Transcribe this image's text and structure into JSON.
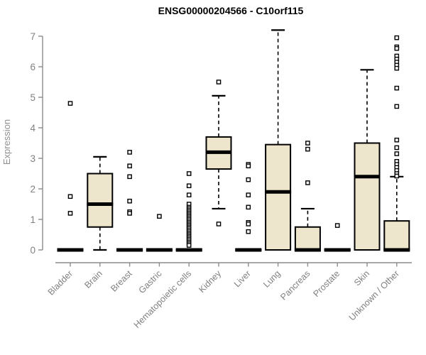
{
  "title": "ENSG00000204566 - C10orf115",
  "chart_data": {
    "type": "boxplot",
    "title": "ENSG00000204566 - C10orf115",
    "xlabel": "",
    "ylabel": "Expression",
    "ylim": [
      0,
      7
    ],
    "yticks": [
      0,
      1,
      2,
      3,
      4,
      5,
      6,
      7
    ],
    "grid": false,
    "legend": false,
    "categories": [
      "Bladder",
      "Brain",
      "Breast",
      "Gastric",
      "Hematopoietic cells",
      "Kidney",
      "Liver",
      "Lung",
      "Pancreas",
      "Prostate",
      "Skin",
      "Unknown / Other"
    ],
    "boxes": [
      {
        "category": "Bladder",
        "whisker_low": 0,
        "q1": 0,
        "median": 0,
        "q3": 0,
        "whisker_high": 0,
        "outliers": [
          4.8,
          1.75,
          1.2
        ]
      },
      {
        "category": "Brain",
        "whisker_low": 0,
        "q1": 0.75,
        "median": 1.5,
        "q3": 2.5,
        "whisker_high": 3.05,
        "outliers": []
      },
      {
        "category": "Breast",
        "whisker_low": 0,
        "q1": 0,
        "median": 0,
        "q3": 0,
        "whisker_high": 0,
        "outliers": [
          3.2,
          2.75,
          2.4,
          1.6,
          1.25,
          1.2
        ]
      },
      {
        "category": "Gastric",
        "whisker_low": 0,
        "q1": 0,
        "median": 0,
        "q3": 0,
        "whisker_high": 0,
        "outliers": [
          1.1
        ]
      },
      {
        "category": "Hematopoietic cells",
        "whisker_low": 0,
        "q1": 0,
        "median": 0,
        "q3": 0,
        "whisker_high": 0,
        "outliers": [
          2.5,
          2.1,
          1.8,
          1.5,
          1.4,
          1.35,
          1.3,
          1.25,
          1.2,
          1.15,
          1.1,
          1.05,
          1.0,
          0.95,
          0.9,
          0.85,
          0.8,
          0.75,
          0.7,
          0.65,
          0.6,
          0.55,
          0.5,
          0.45,
          0.4,
          0.35,
          0.3,
          0.25,
          0.2,
          0.15
        ]
      },
      {
        "category": "Kidney",
        "whisker_low": 1.35,
        "q1": 2.65,
        "median": 3.2,
        "q3": 3.7,
        "whisker_high": 5.05,
        "outliers": [
          5.5,
          0.85
        ]
      },
      {
        "category": "Liver",
        "whisker_low": 0,
        "q1": 0,
        "median": 0,
        "q3": 0,
        "whisker_high": 0,
        "outliers": [
          2.8,
          2.75,
          2.3,
          1.8,
          1.4,
          0.9,
          0.85,
          0.6
        ]
      },
      {
        "category": "Lung",
        "whisker_low": 0,
        "q1": 0,
        "median": 1.9,
        "q3": 3.45,
        "whisker_high": 7.2,
        "outliers": []
      },
      {
        "category": "Pancreas",
        "whisker_low": 0,
        "q1": 0,
        "median": 0,
        "q3": 0.75,
        "whisker_high": 1.35,
        "outliers": [
          3.5,
          3.3,
          2.2
        ]
      },
      {
        "category": "Prostate",
        "whisker_low": 0,
        "q1": 0,
        "median": 0,
        "q3": 0,
        "whisker_high": 0,
        "outliers": [
          0.8
        ]
      },
      {
        "category": "Skin",
        "whisker_low": 0,
        "q1": 0,
        "median": 2.4,
        "q3": 3.5,
        "whisker_high": 5.9,
        "outliers": []
      },
      {
        "category": "Unknown / Other",
        "whisker_low": 0,
        "q1": 0,
        "median": 0,
        "q3": 0.95,
        "whisker_high": 2.4,
        "outliers": [
          6.95,
          6.65,
          6.6,
          6.35,
          6.25,
          6.15,
          6.05,
          5.95,
          5.3,
          4.7,
          3.6,
          3.35,
          3.15,
          2.9,
          2.8,
          2.7,
          2.6,
          2.5,
          2.42
        ]
      }
    ],
    "colors": {
      "box_fill": "#EDE6CC",
      "box_stroke": "#000000",
      "median": "#000000",
      "whisker": "#000000",
      "outlier_stroke": "#000000",
      "outlier_fill": "#FFFFFF",
      "axis": "#8C8C8C",
      "tick_label": "#808080",
      "title": "#000000"
    }
  }
}
